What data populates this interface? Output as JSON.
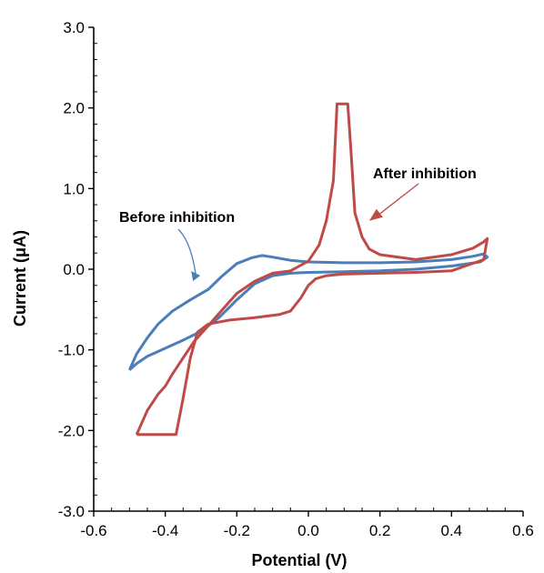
{
  "chart_data": {
    "type": "line",
    "title": "",
    "xlabel": "Potential (V)",
    "ylabel": "Current (μA)",
    "xlim": [
      -0.6,
      0.6
    ],
    "ylim": [
      -3.0,
      3.0
    ],
    "x_ticks": [
      "-0.6",
      "-0.4",
      "-0.2",
      "0.0",
      "0.2",
      "0.4",
      "0.6"
    ],
    "y_ticks": [
      "3.0",
      "2.0",
      "1.0",
      "0.0",
      "-1.0",
      "-2.0",
      "-3.0"
    ],
    "grid": false,
    "legend": "none",
    "series": [
      {
        "label": "Before inhibition",
        "color": "#4a7ebb",
        "points": [
          [
            -0.5,
            -1.25
          ],
          [
            -0.48,
            -1.05
          ],
          [
            -0.45,
            -0.85
          ],
          [
            -0.42,
            -0.68
          ],
          [
            -0.38,
            -0.52
          ],
          [
            -0.33,
            -0.38
          ],
          [
            -0.28,
            -0.25
          ],
          [
            -0.24,
            -0.08
          ],
          [
            -0.2,
            0.07
          ],
          [
            -0.16,
            0.14
          ],
          [
            -0.13,
            0.17
          ],
          [
            -0.1,
            0.15
          ],
          [
            -0.05,
            0.11
          ],
          [
            0.0,
            0.09
          ],
          [
            0.1,
            0.08
          ],
          [
            0.2,
            0.08
          ],
          [
            0.3,
            0.09
          ],
          [
            0.4,
            0.12
          ],
          [
            0.46,
            0.16
          ],
          [
            0.49,
            0.19
          ],
          [
            0.5,
            0.15
          ],
          [
            0.48,
            0.09
          ],
          [
            0.4,
            0.04
          ],
          [
            0.3,
            0.0
          ],
          [
            0.2,
            -0.02
          ],
          [
            0.1,
            -0.03
          ],
          [
            0.0,
            -0.04
          ],
          [
            -0.05,
            -0.05
          ],
          [
            -0.1,
            -0.08
          ],
          [
            -0.15,
            -0.18
          ],
          [
            -0.2,
            -0.38
          ],
          [
            -0.25,
            -0.6
          ],
          [
            -0.3,
            -0.77
          ],
          [
            -0.35,
            -0.88
          ],
          [
            -0.4,
            -0.98
          ],
          [
            -0.45,
            -1.08
          ],
          [
            -0.48,
            -1.17
          ],
          [
            -0.5,
            -1.25
          ]
        ]
      },
      {
        "label": "After inhibition",
        "color": "#be4b48",
        "points": [
          [
            -0.48,
            -2.05
          ],
          [
            -0.45,
            -1.75
          ],
          [
            -0.42,
            -1.55
          ],
          [
            -0.4,
            -1.45
          ],
          [
            -0.38,
            -1.3
          ],
          [
            -0.35,
            -1.1
          ],
          [
            -0.32,
            -0.9
          ],
          [
            -0.28,
            -0.7
          ],
          [
            -0.24,
            -0.5
          ],
          [
            -0.2,
            -0.3
          ],
          [
            -0.15,
            -0.15
          ],
          [
            -0.1,
            -0.05
          ],
          [
            -0.05,
            -0.02
          ],
          [
            0.0,
            0.1
          ],
          [
            0.03,
            0.3
          ],
          [
            0.05,
            0.6
          ],
          [
            0.07,
            1.1
          ],
          [
            0.08,
            2.05
          ],
          [
            0.11,
            2.05
          ],
          [
            0.12,
            1.4
          ],
          [
            0.13,
            0.7
          ],
          [
            0.15,
            0.4
          ],
          [
            0.17,
            0.25
          ],
          [
            0.2,
            0.18
          ],
          [
            0.3,
            0.12
          ],
          [
            0.4,
            0.18
          ],
          [
            0.46,
            0.26
          ],
          [
            0.49,
            0.34
          ],
          [
            0.5,
            0.38
          ],
          [
            0.49,
            0.12
          ],
          [
            0.4,
            -0.02
          ],
          [
            0.3,
            -0.04
          ],
          [
            0.2,
            -0.05
          ],
          [
            0.1,
            -0.06
          ],
          [
            0.05,
            -0.08
          ],
          [
            0.02,
            -0.12
          ],
          [
            0.0,
            -0.2
          ],
          [
            -0.02,
            -0.35
          ],
          [
            -0.05,
            -0.52
          ],
          [
            -0.08,
            -0.56
          ],
          [
            -0.15,
            -0.6
          ],
          [
            -0.22,
            -0.63
          ],
          [
            -0.28,
            -0.68
          ],
          [
            -0.31,
            -0.78
          ],
          [
            -0.33,
            -1.1
          ],
          [
            -0.35,
            -1.6
          ],
          [
            -0.37,
            -2.05
          ],
          [
            -0.48,
            -2.05
          ]
        ]
      }
    ],
    "annotations": [
      {
        "text": "Before inhibition",
        "series": "Before inhibition",
        "arrow_to": [
          -0.33,
          -0.18
        ]
      },
      {
        "text": "After inhibition",
        "series": "After inhibition",
        "arrow_to": [
          0.17,
          0.6
        ]
      }
    ]
  }
}
